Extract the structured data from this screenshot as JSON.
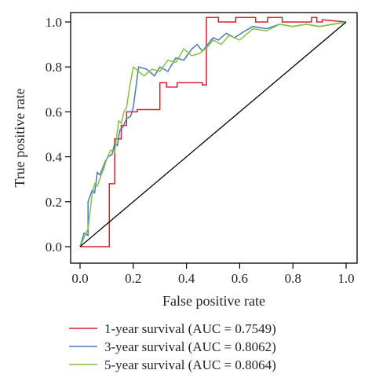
{
  "chart_data": {
    "type": "line",
    "title": "",
    "xlabel": "False positive rate",
    "ylabel": "True positive rate",
    "xlim": [
      0,
      1
    ],
    "ylim": [
      0,
      1
    ],
    "x_ticks": [
      0.0,
      0.2,
      0.4,
      0.6,
      0.8,
      1.0
    ],
    "y_ticks": [
      0.0,
      0.2,
      0.4,
      0.6,
      0.8,
      1.0
    ],
    "x_tick_labels": [
      "0.0",
      "0.2",
      "0.4",
      "0.6",
      "0.8",
      "1.0"
    ],
    "y_tick_labels": [
      "0.0",
      "0.2",
      "0.4",
      "0.6",
      "0.8",
      "1.0"
    ],
    "grid": false,
    "legend_position": "bottom",
    "reference_line": {
      "x": [
        0,
        1
      ],
      "y": [
        0,
        1
      ],
      "color": "#000000"
    },
    "series": [
      {
        "name": "1-year survival (AUC = 0.7549)",
        "color": "#d6202f",
        "x": [
          0.0,
          0.11,
          0.11,
          0.13,
          0.13,
          0.155,
          0.155,
          0.175,
          0.175,
          0.215,
          0.215,
          0.3,
          0.3,
          0.325,
          0.325,
          0.365,
          0.365,
          0.46,
          0.46,
          0.475,
          0.475,
          0.52,
          0.52,
          0.585,
          0.585,
          0.66,
          0.66,
          0.705,
          0.705,
          0.76,
          0.76,
          0.87,
          0.87,
          0.89,
          0.89,
          0.91,
          0.91,
          1.0
        ],
        "y": [
          0.0,
          0.0,
          0.28,
          0.28,
          0.48,
          0.48,
          0.54,
          0.54,
          0.6,
          0.6,
          0.61,
          0.61,
          0.73,
          0.73,
          0.71,
          0.71,
          0.73,
          0.73,
          0.72,
          0.72,
          1.02,
          1.02,
          1.0,
          1.0,
          1.02,
          1.02,
          1.0,
          1.0,
          1.02,
          1.02,
          1.0,
          1.0,
          1.02,
          1.02,
          1.0,
          1.0,
          1.01,
          1.0
        ]
      },
      {
        "name": "3-year survival (AUC = 0.8062)",
        "color": "#4a78b8",
        "x": [
          0.0,
          0.015,
          0.03,
          0.03,
          0.045,
          0.055,
          0.065,
          0.075,
          0.085,
          0.095,
          0.105,
          0.12,
          0.13,
          0.14,
          0.15,
          0.16,
          0.175,
          0.19,
          0.2,
          0.22,
          0.25,
          0.28,
          0.3,
          0.33,
          0.36,
          0.39,
          0.42,
          0.44,
          0.46,
          0.48,
          0.5,
          0.52,
          0.55,
          0.58,
          0.62,
          0.65,
          0.7,
          0.75,
          0.8,
          0.85,
          0.9,
          0.95,
          1.0
        ],
        "y": [
          0.0,
          0.06,
          0.05,
          0.2,
          0.25,
          0.24,
          0.33,
          0.32,
          0.35,
          0.38,
          0.4,
          0.41,
          0.46,
          0.45,
          0.52,
          0.53,
          0.57,
          0.58,
          0.62,
          0.8,
          0.79,
          0.76,
          0.8,
          0.78,
          0.84,
          0.83,
          0.88,
          0.9,
          0.87,
          0.9,
          0.93,
          0.92,
          0.95,
          0.93,
          0.96,
          0.98,
          0.97,
          0.99,
          0.98,
          0.99,
          0.98,
          0.99,
          1.0
        ]
      },
      {
        "name": "5-year survival (AUC = 0.8064)",
        "color": "#84c141",
        "x": [
          0.0,
          0.015,
          0.03,
          0.045,
          0.055,
          0.065,
          0.08,
          0.09,
          0.1,
          0.115,
          0.13,
          0.145,
          0.155,
          0.165,
          0.175,
          0.185,
          0.2,
          0.22,
          0.24,
          0.27,
          0.3,
          0.33,
          0.36,
          0.39,
          0.42,
          0.45,
          0.48,
          0.5,
          0.53,
          0.56,
          0.6,
          0.65,
          0.7,
          0.75,
          0.8,
          0.85,
          0.9,
          0.95,
          1.0
        ],
        "y": [
          0.0,
          0.04,
          0.08,
          0.23,
          0.28,
          0.27,
          0.32,
          0.35,
          0.39,
          0.43,
          0.42,
          0.56,
          0.55,
          0.6,
          0.62,
          0.7,
          0.8,
          0.78,
          0.76,
          0.79,
          0.78,
          0.83,
          0.82,
          0.88,
          0.85,
          0.86,
          0.89,
          0.92,
          0.9,
          0.94,
          0.92,
          0.97,
          0.96,
          0.99,
          0.98,
          0.99,
          0.98,
          0.99,
          1.0
        ]
      }
    ]
  }
}
